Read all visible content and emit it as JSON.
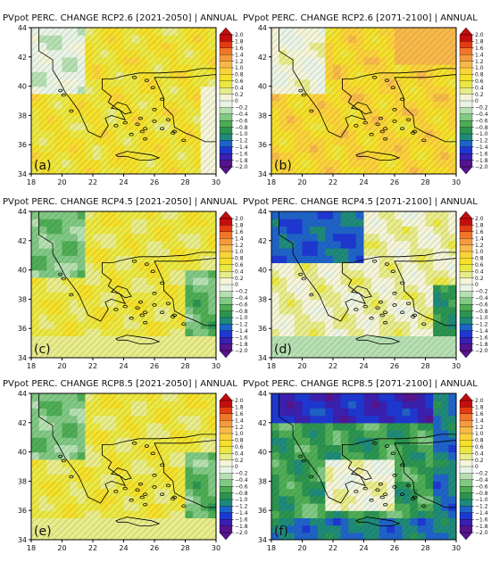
{
  "chart_data": [
    {
      "type": "heatmap",
      "panel": "(a)",
      "title": "PVpot PERC. CHANGE RCP2.6 [2021-2050] | ANNUAL",
      "pattern": "mostly-positive"
    },
    {
      "type": "heatmap",
      "panel": "(b)",
      "title": "PVpot PERC. CHANGE RCP2.6 [2071-2100] | ANNUAL",
      "pattern": "positive"
    },
    {
      "type": "heatmap",
      "panel": "(c)",
      "title": "PVpot PERC. CHANGE RCP4.5 [2021-2050] | ANNUAL",
      "pattern": "mixed"
    },
    {
      "type": "heatmap",
      "panel": "(d)",
      "title": "PVpot PERC. CHANGE RCP4.5 [2071-2100] | ANNUAL",
      "pattern": "negative-north"
    },
    {
      "type": "heatmap",
      "panel": "(e)",
      "title": "PVpot PERC. CHANGE RCP8.5 [2021-2050] | ANNUAL",
      "pattern": "mixed"
    },
    {
      "type": "heatmap",
      "panel": "(f)",
      "title": "PVpot PERC. CHANGE RCP8.5 [2071-2100] | ANNUAL",
      "pattern": "negative"
    }
  ],
  "axes": {
    "x_ticks": [
      "18",
      "20",
      "22",
      "24",
      "26",
      "28",
      "30"
    ],
    "y_ticks": [
      "34",
      "36",
      "38",
      "40",
      "42",
      "44"
    ],
    "xlim": [
      18,
      30
    ],
    "ylim": [
      34,
      44
    ]
  },
  "colorbar": {
    "labels": [
      "2.0",
      "1.8",
      "1.6",
      "1.4",
      "1.2",
      "1.0",
      "0.8",
      "0.6",
      "0.4",
      "0.2",
      "0",
      "−0.2",
      "−0.4",
      "−0.6",
      "−0.8",
      "−1.0",
      "−1.2",
      "−1.4",
      "−1.6",
      "−1.8",
      "−2.0"
    ],
    "colors": [
      "#c40d0d",
      "#e33b12",
      "#f0762a",
      "#f59a3e",
      "#f8b94a",
      "#fbd23a",
      "#f5e02a",
      "#ece842",
      "#e8ec8a",
      "#f4f5d8",
      "#e9f4e6",
      "#b6e0b2",
      "#80c883",
      "#4ead55",
      "#2b9450",
      "#1e8a7a",
      "#1e63c8",
      "#1d37d2",
      "#3a1fb0",
      "#55148e"
    ]
  }
}
